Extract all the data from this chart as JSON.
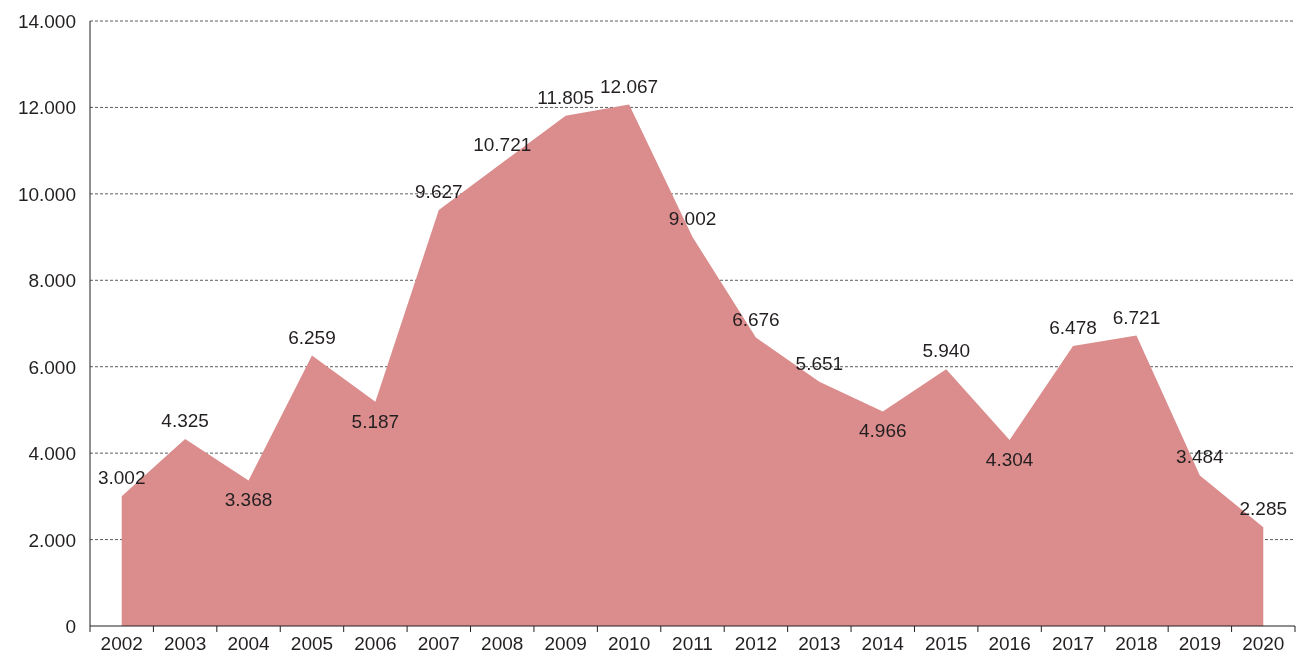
{
  "chart_data": {
    "type": "area",
    "categories": [
      "2002",
      "2003",
      "2004",
      "2005",
      "2006",
      "2007",
      "2008",
      "2009",
      "2010",
      "2011",
      "2012",
      "2013",
      "2014",
      "2015",
      "2016",
      "2017",
      "2018",
      "2019",
      "2020"
    ],
    "series": [
      {
        "color": "#db8c8c",
        "values": [
          3002,
          4325,
          3368,
          6259,
          5187,
          9627,
          10721,
          11805,
          12067,
          9002,
          6676,
          5651,
          4966,
          5940,
          4304,
          6478,
          6721,
          3484,
          2285
        ],
        "value_labels": [
          "3.002",
          "4.325",
          "3.368",
          "6.259",
          "5.187",
          "9.627",
          "10.721",
          "11.805",
          "12.067",
          "9.002",
          "6.676",
          "5.651",
          "4.966",
          "5.940",
          "4.304",
          "6.478",
          "6.721",
          "3.484",
          "2.285"
        ]
      }
    ],
    "ylim": [
      0,
      14000
    ],
    "yticks": [
      0,
      {
        "value": 2000,
        "label": "2.000"
      },
      {
        "value": 4000,
        "label": "4.000"
      },
      {
        "value": 6000,
        "label": "6.000"
      },
      {
        "value": 8000,
        "label": "8.000"
      },
      {
        "value": 10000,
        "label": "10.000"
      },
      {
        "value": 12000,
        "label": "12.000"
      },
      {
        "value": 14000,
        "label": "14.000"
      }
    ],
    "grid": "y"
  }
}
